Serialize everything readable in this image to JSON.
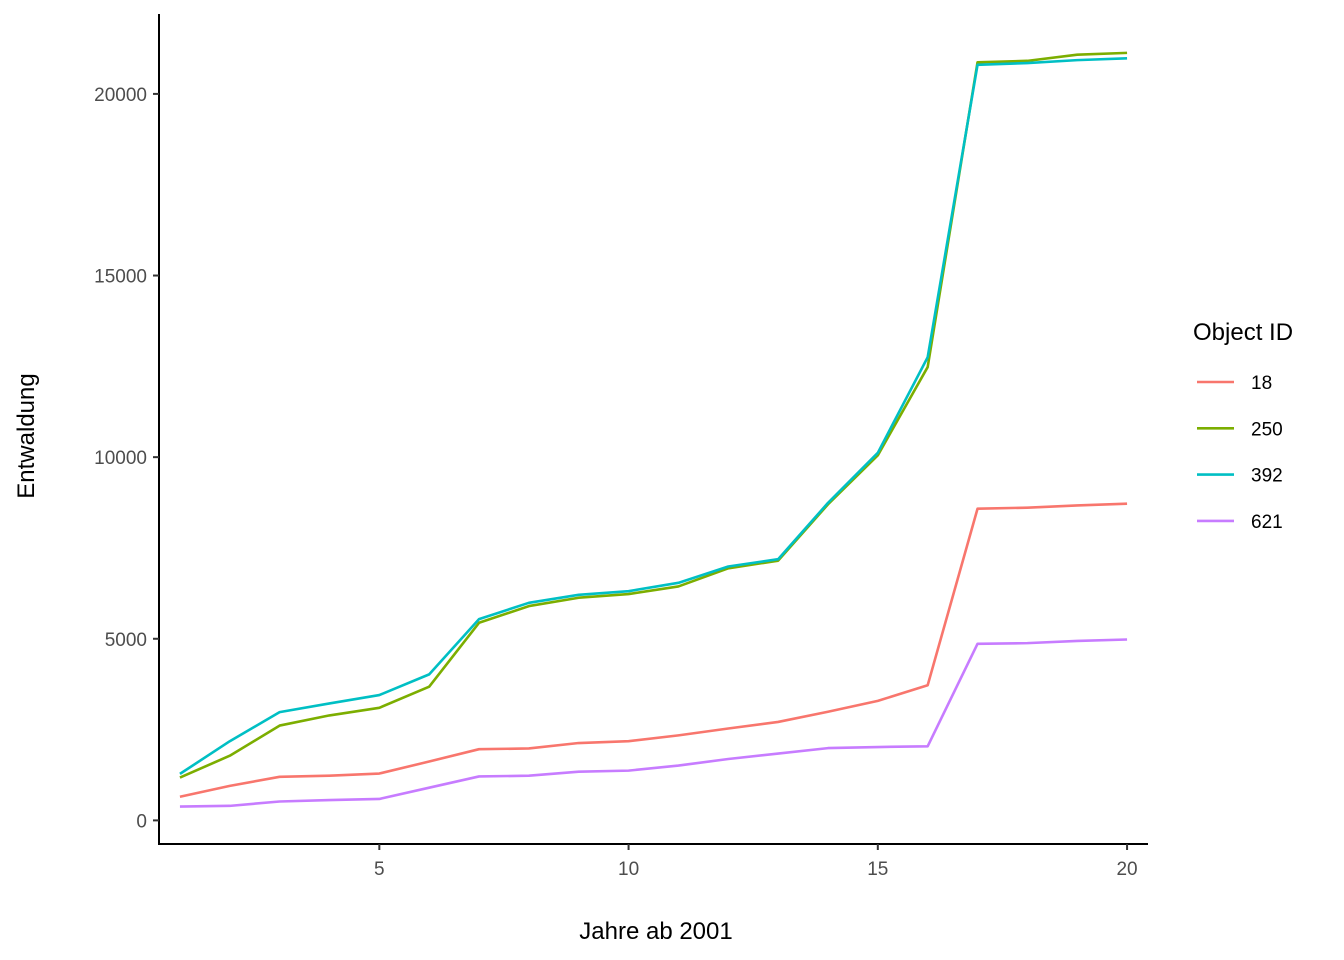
{
  "chart_data": {
    "type": "line",
    "xlabel": "Jahre ab 2001",
    "ylabel": "Entwaldung",
    "xlim": [
      0.58,
      20.42
    ],
    "ylim": [
      -650,
      22200
    ],
    "x_ticks": [
      5,
      10,
      15,
      20
    ],
    "y_ticks": [
      0,
      5000,
      10000,
      15000,
      20000
    ],
    "grid": false,
    "legend_title": "Object ID",
    "legend_position": "right",
    "x": [
      1,
      2,
      3,
      4,
      5,
      6,
      7,
      8,
      9,
      10,
      11,
      12,
      13,
      14,
      15,
      16,
      17,
      18,
      19,
      20
    ],
    "series": [
      {
        "name": "18",
        "color": "#F8766D",
        "values": [
          650,
          950,
          1200,
          1230,
          1290,
          1620,
          1960,
          1980,
          2130,
          2180,
          2340,
          2530,
          2710,
          2990,
          3290,
          3720,
          8580,
          8610,
          8670,
          8720
        ]
      },
      {
        "name": "250",
        "color": "#7CAE00",
        "values": [
          1180,
          1780,
          2610,
          2890,
          3100,
          3680,
          5440,
          5900,
          6130,
          6230,
          6440,
          6940,
          7150,
          8700,
          10050,
          12480,
          20870,
          20910,
          21080,
          21130
        ]
      },
      {
        "name": "392",
        "color": "#00BFC4",
        "values": [
          1280,
          2180,
          2980,
          3220,
          3450,
          4020,
          5540,
          5990,
          6210,
          6310,
          6540,
          6990,
          7190,
          8740,
          10120,
          12750,
          20800,
          20850,
          20930,
          20980
        ]
      },
      {
        "name": "621",
        "color": "#C77CFF",
        "values": [
          380,
          400,
          520,
          560,
          590,
          900,
          1210,
          1230,
          1340,
          1370,
          1510,
          1690,
          1840,
          1990,
          2020,
          2040,
          4860,
          4880,
          4940,
          4980
        ]
      }
    ]
  }
}
